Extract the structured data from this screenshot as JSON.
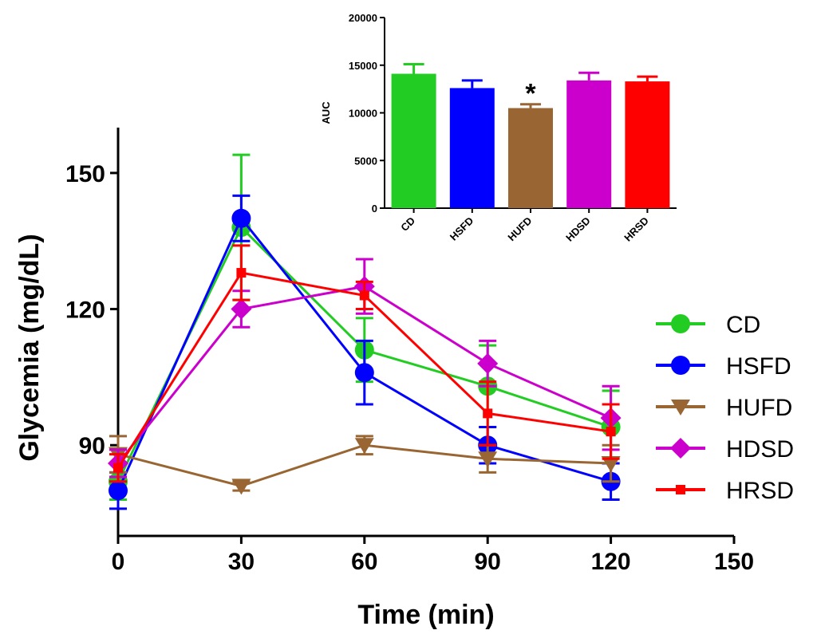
{
  "chart_data": [
    {
      "type": "line",
      "title": "",
      "xlabel": "Time (min)",
      "ylabel": "Glycemia (mg/dL)",
      "xlim": [
        0,
        150
      ],
      "ylim": [
        70,
        160
      ],
      "xticks": [
        0,
        30,
        60,
        90,
        120,
        150
      ],
      "yticks": [
        90,
        120,
        150
      ],
      "x": [
        0,
        30,
        60,
        90,
        120
      ],
      "legend_position": "right",
      "series": [
        {
          "name": "CD",
          "color": "#22cc22",
          "marker": "circle",
          "values": [
            82,
            138,
            111,
            103,
            94
          ],
          "errors": [
            4,
            16,
            7,
            9,
            8
          ]
        },
        {
          "name": "HSFD",
          "color": "#0000ff",
          "marker": "circle",
          "values": [
            80,
            140,
            106,
            90,
            82
          ],
          "errors": [
            4,
            5,
            7,
            4,
            4
          ]
        },
        {
          "name": "HUFD",
          "color": "#996633",
          "marker": "triangle-down",
          "values": [
            88,
            81,
            90,
            87,
            86
          ],
          "errors": [
            4,
            1,
            2,
            3,
            4
          ]
        },
        {
          "name": "HDSD",
          "color": "#cc00cc",
          "marker": "diamond",
          "values": [
            86,
            120,
            125,
            108,
            96
          ],
          "errors": [
            3,
            4,
            6,
            5,
            7
          ]
        },
        {
          "name": "HRSD",
          "color": "#ff0000",
          "marker": "square",
          "values": [
            85,
            128,
            123,
            97,
            93
          ],
          "errors": [
            3,
            6,
            3,
            7,
            6
          ]
        }
      ]
    },
    {
      "type": "bar",
      "title": "",
      "xlabel": "",
      "ylabel": "AUC",
      "ylim": [
        0,
        20000
      ],
      "yticks": [
        0,
        5000,
        10000,
        15000,
        20000
      ],
      "categories": [
        "CD",
        "HSFD",
        "HUFD",
        "HDSD",
        "HRSD"
      ],
      "values": [
        14100,
        12600,
        10500,
        13400,
        13300
      ],
      "errors": [
        1000,
        800,
        400,
        800,
        500
      ],
      "colors": [
        "#22cc22",
        "#0000ff",
        "#996633",
        "#cc00cc",
        "#ff0000"
      ],
      "annotation": {
        "category": "HUFD",
        "text": "*"
      }
    }
  ]
}
